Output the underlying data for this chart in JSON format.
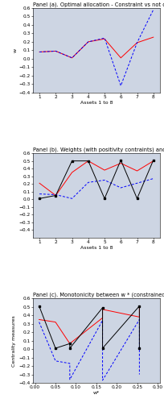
{
  "panel_a": {
    "title": "Panel (a). Optimal allocation - Constraint vs not constraint",
    "xlabel": "Assets 1 to 8",
    "ylabel": "w",
    "xlim": [
      0.6,
      8.4
    ],
    "ylim": [
      -0.4,
      0.6
    ],
    "yticks": [
      -0.4,
      -0.3,
      -0.2,
      -0.1,
      0,
      0.1,
      0.2,
      0.3,
      0.4,
      0.5,
      0.6
    ],
    "xticks": [
      1,
      2,
      3,
      4,
      5,
      6,
      7,
      8
    ],
    "x": [
      1,
      2,
      3,
      4,
      5,
      6,
      7,
      8
    ],
    "red_line": [
      0.08,
      0.09,
      0.01,
      0.2,
      0.235,
      0.01,
      0.19,
      0.255
    ],
    "blue_dashed": [
      0.08,
      0.09,
      0.01,
      0.2,
      0.245,
      -0.32,
      0.19,
      0.58
    ]
  },
  "panel_b": {
    "title": "Panel (b). Weights (with positivity contraints) and centrality measures",
    "xlabel": "Assets 1 to 8",
    "ylabel": "",
    "xlim": [
      0.6,
      8.4
    ],
    "ylim": [
      -0.5,
      0.6
    ],
    "yticks": [
      -0.4,
      -0.3,
      -0.2,
      -0.1,
      0,
      0.1,
      0.2,
      0.3,
      0.4,
      0.5,
      0.6
    ],
    "xticks": [
      1,
      2,
      3,
      4,
      5,
      6,
      7,
      8
    ],
    "x": [
      1,
      2,
      3,
      4,
      5,
      6,
      7,
      8
    ],
    "black_line": [
      0.01,
      0.05,
      0.5,
      0.5,
      0.01,
      0.51,
      0.01,
      0.51
    ],
    "red_line": [
      0.21,
      0.05,
      0.35,
      0.5,
      0.38,
      0.47,
      0.37,
      0.5
    ],
    "blue_dashed": [
      0.07,
      0.06,
      0.01,
      0.22,
      0.25,
      0.15,
      0.21,
      0.27
    ]
  },
  "panel_c": {
    "title": "Panel (c). Monotonicity between w * (constrained) and centrality measures",
    "xlabel": "w*",
    "ylabel": "Centrality measures",
    "xlim": [
      -0.005,
      0.305
    ],
    "ylim": [
      -0.4,
      0.6
    ],
    "yticks": [
      -0.4,
      -0.3,
      -0.2,
      -0.1,
      0,
      0.1,
      0.2,
      0.3,
      0.4,
      0.5,
      0.6
    ],
    "xticks": [
      0,
      0.05,
      0.1,
      0.15,
      0.2,
      0.25,
      0.3
    ],
    "x": [
      0.01,
      0.05,
      0.085,
      0.085,
      0.165,
      0.165,
      0.255,
      0.255
    ],
    "black_line": [
      0.51,
      0.01,
      0.065,
      0.01,
      0.49,
      0.01,
      0.51,
      0.01
    ],
    "red_line": [
      0.35,
      0.32,
      0.065,
      0.065,
      0.37,
      0.47,
      0.38,
      0.51
    ],
    "blue_dashed": [
      0.32,
      -0.14,
      -0.17,
      -0.36,
      0.34,
      -0.37,
      0.35,
      -0.3
    ]
  },
  "bg_color": "#cdd5e3",
  "fig_color": "#ffffff",
  "title_fontsize": 4.8,
  "tick_fontsize": 4.2,
  "label_fontsize": 4.5
}
